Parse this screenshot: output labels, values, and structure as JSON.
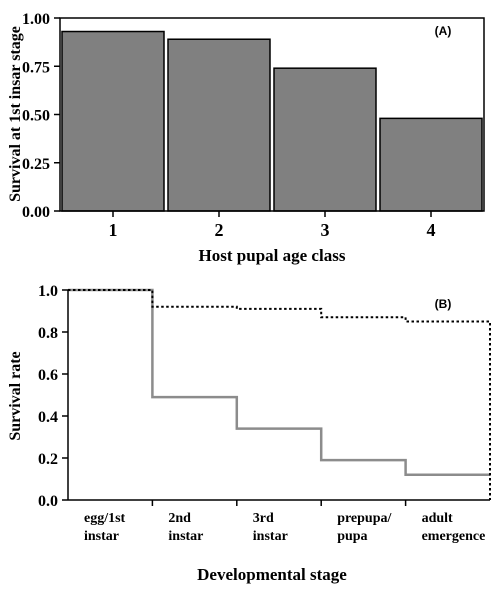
{
  "chart_data": [
    {
      "panel_label": "(A)",
      "type": "bar",
      "categories": [
        "1",
        "2",
        "3",
        "4"
      ],
      "values": [
        0.93,
        0.89,
        0.74,
        0.48
      ],
      "xlabel": "Host pupal age class",
      "ylabel": "Survival at 1st insar stage",
      "ylim": [
        0,
        1.0
      ],
      "yticks": [
        "0.00",
        "0.25",
        "0.50",
        "0.75",
        "1.00"
      ],
      "bar_color": "#808080",
      "grid": false
    },
    {
      "panel_label": "(B)",
      "type": "line",
      "step": true,
      "categories": [
        [
          "egg/1st",
          "instar"
        ],
        [
          "2nd",
          "instar"
        ],
        [
          "3rd",
          "instar"
        ],
        [
          "prepupa/",
          "pupa"
        ],
        [
          "adult",
          "emergence"
        ]
      ],
      "series": [
        {
          "style": "solid",
          "color": "#8c8c8c",
          "values": [
            1.0,
            0.49,
            0.34,
            0.19,
            0.12
          ]
        },
        {
          "style": "dotted",
          "color": "#000000",
          "values": [
            1.0,
            0.92,
            0.91,
            0.87,
            0.85
          ]
        }
      ],
      "xlabel": "Developmental stage",
      "ylabel": "Survival rate",
      "ylim": [
        0,
        1.0
      ],
      "yticks": [
        "0.0",
        "0.2",
        "0.4",
        "0.6",
        "0.8",
        "1.0"
      ],
      "grid": false
    }
  ]
}
